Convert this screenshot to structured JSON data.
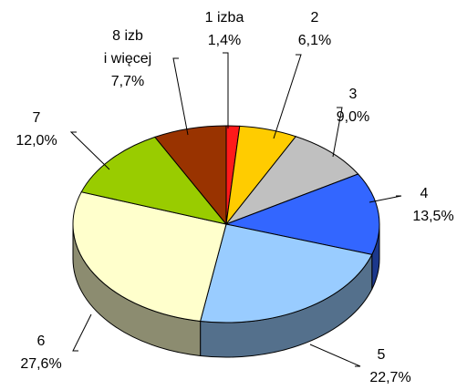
{
  "chart_data": {
    "type": "pie3d",
    "categories": [
      "1 izba",
      "2",
      "3",
      "4",
      "5",
      "6",
      "7",
      "8 izb\ni więcej"
    ],
    "values": [
      1.4,
      6.1,
      9.0,
      13.5,
      22.7,
      27.6,
      12.0,
      7.7
    ],
    "value_labels": [
      "1,4%",
      "6,1%",
      "9,0%",
      "13,5%",
      "22,7%",
      "27,6%",
      "12,0%",
      "7,7%"
    ],
    "colors": [
      "#ff1a1a",
      "#ffcc00",
      "#c0c0c0",
      "#3366ff",
      "#99ccff",
      "#ffffcc",
      "#99cc00",
      "#993300"
    ]
  }
}
